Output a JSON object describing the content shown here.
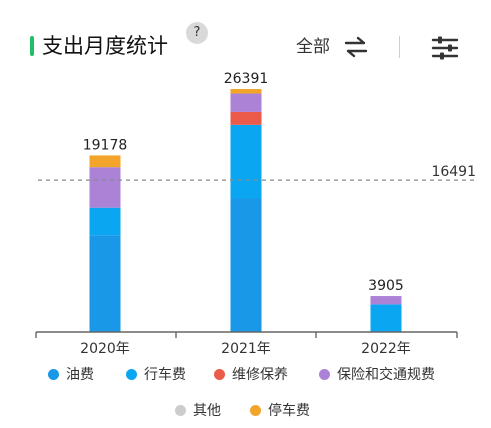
{
  "header": {
    "title": "支出月度统计",
    "help_label": "?",
    "range_label": "全部",
    "swap_icon": "swap-arrows-icon",
    "filter_icon": "sliders-filter-icon"
  },
  "colors": {
    "accent": "#1fbf6a",
    "oil": "#1a98e8",
    "travel": "#0aa6f2",
    "maintenance": "#ec5a4a",
    "insurance": "#ac82d6",
    "other": "#cccccc",
    "parking": "#f3a42a"
  },
  "chart_data": {
    "type": "bar",
    "stacked": true,
    "categories": [
      "2020年",
      "2021年",
      "2022年"
    ],
    "series": [
      {
        "name": "油费",
        "color": "#1a98e8",
        "values": [
          10500,
          14500,
          0
        ]
      },
      {
        "name": "行车费",
        "color": "#0aa6f2",
        "values": [
          3000,
          8000,
          3000
        ]
      },
      {
        "name": "维修保养",
        "color": "#ec5a4a",
        "values": [
          0,
          1400,
          0
        ]
      },
      {
        "name": "保险和交通规费",
        "color": "#ac82d6",
        "values": [
          4400,
          2000,
          905
        ]
      },
      {
        "name": "其他",
        "color": "#cccccc",
        "values": [
          0,
          0,
          0
        ]
      },
      {
        "name": "停车费",
        "color": "#f3a42a",
        "values": [
          1278,
          491,
          0
        ]
      }
    ],
    "totals": [
      "19178",
      "26391",
      "3905"
    ],
    "reference_line": {
      "value": 16491,
      "label": "16491"
    },
    "ylim": [
      0,
      26391
    ],
    "grid": false,
    "legend_position": "bottom"
  }
}
